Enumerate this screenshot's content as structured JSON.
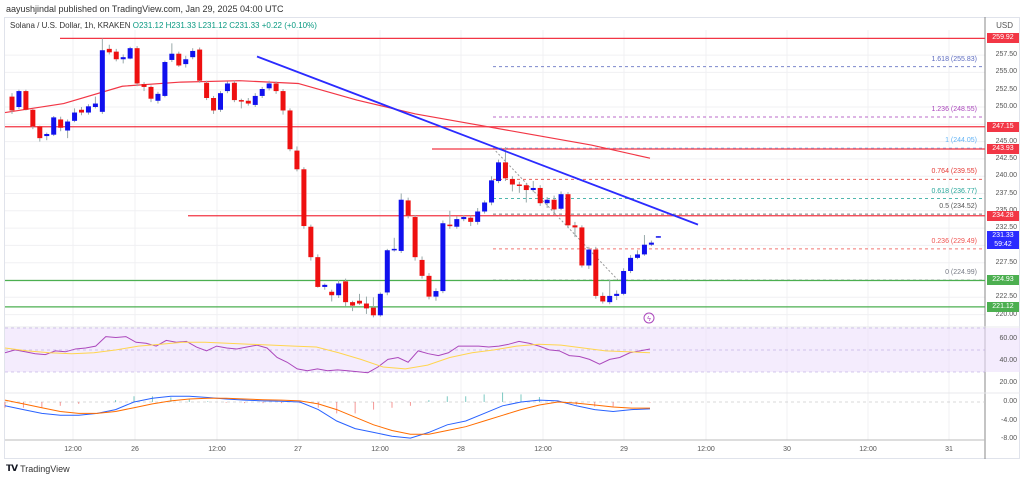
{
  "header": {
    "published": "aayushjindal published on TradingView.com, Jan 29, 2025 04:00 UTC",
    "symbol": "Solana / U.S. Dollar, 1h, KRAKEN",
    "ohlc": "O231.12  H231.33  L231.12  C231.33  +0.22 (+0.10%)"
  },
  "axis": {
    "currency": "USD",
    "price_ticks": [
      "257.50",
      "255.00",
      "252.50",
      "250.00",
      "245.00",
      "242.50",
      "240.00",
      "237.50",
      "235.00",
      "232.50",
      "227.50",
      "222.50",
      "220.00"
    ],
    "rsi_ticks": [
      "60.00",
      "40.00",
      "20.00"
    ],
    "macd_ticks": [
      "0.00",
      "-4.00",
      "-8.00"
    ],
    "time_ticks": [
      "12:00",
      "26",
      "12:00",
      "27",
      "12:00",
      "28",
      "12:00",
      "29",
      "12:00",
      "30",
      "12:00",
      "31"
    ]
  },
  "price_labels": [
    {
      "value": "259.92",
      "color": "#f23645"
    },
    {
      "value": "247.15",
      "color": "#f23645"
    },
    {
      "value": "243.93",
      "color": "#f23645"
    },
    {
      "value": "234.28",
      "color": "#f23645"
    },
    {
      "value": "231.33",
      "sub": "59:42",
      "color": "#2b2bff"
    },
    {
      "value": "224.93",
      "color": "#4caf50"
    },
    {
      "value": "221.12",
      "color": "#4caf50"
    }
  ],
  "fib_levels": [
    {
      "label": "1.618 (255.83)",
      "color": "#5c6bc0"
    },
    {
      "label": "1.236 (248.55)",
      "color": "#ab47bc"
    },
    {
      "label": "1 (244.05)",
      "color": "#64b5f6"
    },
    {
      "label": "0.764 (239.55)",
      "color": "#e53935"
    },
    {
      "label": "0.618 (236.77)",
      "color": "#26a69a"
    },
    {
      "label": "0.5 (234.52)",
      "color": "#555555"
    },
    {
      "label": "0.236 (229.49)",
      "color": "#ef5350"
    },
    {
      "label": "0 (224.99)",
      "color": "#787b86"
    }
  ],
  "footer": {
    "brand": "TradingView"
  },
  "chart_data": {
    "type": "candlestick",
    "title": "Solana / U.S. Dollar, 1h, KRAKEN",
    "ylabel": "USD",
    "ylim": [
      219.5,
      261
    ],
    "x_labels": [
      "12:00",
      "26",
      "12:00",
      "27",
      "12:00",
      "28",
      "12:00",
      "29",
      "12:00",
      "30",
      "12:00",
      "31"
    ],
    "last": {
      "open": 231.12,
      "high": 231.33,
      "low": 231.12,
      "close": 231.33,
      "change": 0.22,
      "change_pct": 0.1
    },
    "horizontal_levels": {
      "resistance": [
        259.92,
        247.15,
        243.93,
        234.28
      ],
      "support": [
        224.93,
        221.12
      ]
    },
    "trendline": {
      "from": {
        "x_label": "26 ~20:00",
        "price": 257.3
      },
      "to": {
        "x_label": "29 ~10:00",
        "price": 233.0
      },
      "color": "#2b2bff"
    },
    "moving_average": {
      "color": "#f23645",
      "approx_values": [
        249.2,
        250.5,
        253.0,
        253.6,
        253.8,
        253.4,
        251.0,
        249.0,
        247.5,
        246.0,
        244.5,
        242.6
      ]
    },
    "fibonacci": [
      {
        "ratio": 1.618,
        "price": 255.83
      },
      {
        "ratio": 1.236,
        "price": 248.55
      },
      {
        "ratio": 1,
        "price": 244.05
      },
      {
        "ratio": 0.764,
        "price": 239.55
      },
      {
        "ratio": 0.618,
        "price": 236.77
      },
      {
        "ratio": 0.5,
        "price": 234.52
      },
      {
        "ratio": 0.236,
        "price": 229.49
      },
      {
        "ratio": 0,
        "price": 224.99
      }
    ],
    "candles": [
      [
        251.5,
        249.5,
        252,
        249
      ],
      [
        250,
        252.3,
        252.5,
        249.7
      ],
      [
        252.3,
        249.6,
        252.5,
        249.5
      ],
      [
        249.6,
        247.2,
        249.7,
        246.8
      ],
      [
        247.2,
        245.5,
        247.3,
        245
      ],
      [
        245.8,
        246.1,
        246.3,
        245.2
      ],
      [
        246.0,
        248.5,
        248.7,
        245.8
      ],
      [
        248.2,
        247.0,
        248.6,
        246.5
      ],
      [
        246.6,
        247.9,
        248.2,
        245.5
      ],
      [
        248.0,
        249.2,
        249.8,
        247.8
      ],
      [
        249.6,
        249.2,
        250,
        248.8
      ],
      [
        249.2,
        250.1,
        250.4,
        248.9
      ],
      [
        250.0,
        250.5,
        251.5,
        249.8
      ],
      [
        249.3,
        258.2,
        259.9,
        249.0
      ],
      [
        258.4,
        257.9,
        259,
        257.6
      ],
      [
        258.0,
        256.9,
        258.4,
        256.6
      ],
      [
        256.9,
        257.2,
        257.6,
        256.3
      ],
      [
        257.0,
        258.5,
        258.7,
        256.9
      ],
      [
        258.5,
        253.4,
        258.8,
        253.0
      ],
      [
        253.3,
        252.9,
        253.6,
        252.3
      ],
      [
        252.9,
        251.2,
        253.1,
        250.7
      ],
      [
        250.9,
        251.9,
        252.2,
        250.5
      ],
      [
        251.6,
        256.5,
        256.7,
        251.4
      ],
      [
        256.8,
        257.7,
        259.2,
        256.5
      ],
      [
        257.7,
        256.0,
        258.0,
        255.8
      ],
      [
        256.2,
        256.9,
        257.4,
        255.7
      ],
      [
        257.2,
        258.1,
        258.5,
        256.9
      ],
      [
        258.3,
        253.8,
        258.6,
        253.5
      ],
      [
        253.5,
        251.3,
        253.8,
        251.0
      ],
      [
        251.3,
        249.5,
        251.6,
        249.0
      ],
      [
        249.6,
        252.0,
        252.3,
        249.3
      ],
      [
        252.3,
        253.4,
        253.7,
        252.0
      ],
      [
        253.5,
        251.0,
        253.8,
        250.7
      ],
      [
        251.0,
        250.8,
        251.2,
        249.8
      ],
      [
        250.9,
        250.5,
        251.3,
        250.2
      ],
      [
        250.3,
        251.6,
        252.0,
        250.0
      ],
      [
        251.6,
        252.6,
        252.9,
        251.3
      ],
      [
        252.7,
        253.4,
        253.8,
        252.4
      ],
      [
        253.4,
        252.3,
        253.7,
        251.9
      ],
      [
        252.3,
        249.5,
        252.6,
        248.9
      ],
      [
        249.5,
        243.9,
        249.8,
        243.6
      ],
      [
        243.7,
        241.0,
        244.3,
        240.7
      ],
      [
        241.0,
        232.8,
        241.3,
        232.4
      ],
      [
        232.7,
        228.3,
        233.0,
        227.8
      ],
      [
        228.3,
        224.0,
        228.7,
        223.9
      ],
      [
        224.0,
        224.3,
        224.5,
        223.6
      ],
      [
        223.3,
        222.8,
        223.6,
        221.9
      ],
      [
        222.8,
        224.5,
        225.0,
        222.4
      ],
      [
        224.8,
        221.8,
        225.2,
        221.2
      ],
      [
        221.8,
        221.3,
        222.0,
        220.5
      ],
      [
        222.0,
        221.6,
        223.0,
        221.4
      ],
      [
        221.6,
        220.9,
        222.6,
        220.1
      ],
      [
        221.0,
        219.9,
        222.5,
        219.6
      ],
      [
        219.9,
        223.0,
        223.2,
        219.7
      ],
      [
        223.2,
        229.3,
        229.5,
        222.8
      ],
      [
        229.4,
        229.5,
        231.1,
        229.1
      ],
      [
        229.2,
        236.6,
        237.5,
        228.9
      ],
      [
        236.5,
        234.3,
        236.9,
        233.9
      ],
      [
        234.1,
        228.3,
        234.4,
        227.8
      ],
      [
        227.9,
        225.6,
        228.4,
        225.2
      ],
      [
        225.6,
        222.6,
        226.0,
        222.2
      ],
      [
        222.6,
        223.4,
        223.8,
        222.0
      ],
      [
        223.4,
        233.2,
        233.6,
        223.1
      ],
      [
        233.0,
        232.8,
        235.0,
        232.4
      ],
      [
        232.7,
        233.8,
        234.2,
        232.4
      ],
      [
        233.8,
        234.1,
        234.4,
        233.5
      ],
      [
        234.0,
        233.4,
        234.3,
        232.8
      ],
      [
        233.4,
        234.9,
        235.4,
        233.0
      ],
      [
        234.9,
        236.2,
        236.5,
        234.6
      ],
      [
        236.2,
        239.4,
        240.0,
        235.8
      ],
      [
        239.3,
        242.0,
        242.4,
        239.0
      ],
      [
        242.0,
        239.7,
        244.2,
        239.3
      ],
      [
        239.6,
        238.8,
        240.0,
        237.8
      ],
      [
        238.8,
        238.7,
        239.2,
        237.6
      ],
      [
        238.7,
        238.0,
        238.9,
        236.2
      ],
      [
        238.0,
        238.3,
        239.3,
        237.7
      ],
      [
        238.3,
        236.1,
        238.7,
        235.7
      ],
      [
        236.1,
        236.6,
        237.0,
        235.4
      ],
      [
        236.6,
        235.2,
        237.2,
        234.8
      ],
      [
        235.3,
        237.4,
        237.8,
        235.1
      ],
      [
        237.4,
        232.9,
        237.7,
        232.5
      ],
      [
        232.9,
        232.6,
        233.4,
        231.2
      ],
      [
        232.6,
        227.1,
        232.9,
        226.8
      ],
      [
        227.1,
        229.4,
        229.8,
        226.6
      ],
      [
        229.4,
        222.7,
        229.8,
        222.3
      ],
      [
        222.7,
        221.9,
        223.2,
        221.6
      ],
      [
        221.8,
        222.7,
        225.0,
        221.5
      ],
      [
        222.7,
        223.0,
        223.5,
        222.1
      ],
      [
        223.0,
        226.3,
        226.7,
        222.8
      ],
      [
        226.3,
        228.2,
        228.6,
        226.0
      ],
      [
        228.2,
        228.7,
        229.3,
        228.0
      ],
      [
        228.7,
        230.1,
        231.5,
        228.5
      ],
      [
        230.1,
        230.4,
        230.7,
        229.9
      ],
      [
        231.12,
        231.33,
        231.33,
        231.12
      ]
    ],
    "rsi": {
      "bands": [
        30,
        70
      ],
      "mid": 50,
      "color": "#9c27b0",
      "signal_color": "#ffd54f",
      "last": 52
    },
    "macd": {
      "macd_color": "#2962ff",
      "signal_color": "#ff6d00",
      "hist_pos": "#26a69a",
      "hist_neg": "#ef5350",
      "last": -1.0
    }
  }
}
